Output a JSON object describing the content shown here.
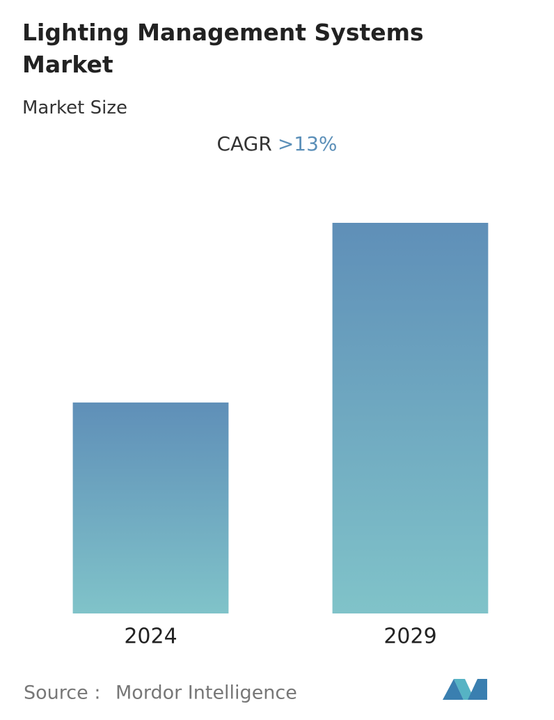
{
  "chart_data": {
    "type": "bar",
    "title": "Lighting Management Systems Market",
    "subtitle": "Market Size",
    "cagr_label": "CAGR",
    "cagr_value": ">13%",
    "categories": [
      "2024",
      "2029"
    ],
    "values": [
      54,
      100
    ],
    "ylim": [
      0,
      100
    ],
    "color_top": "#5f8fb8",
    "color_bottom": "#80c3c9",
    "source_label": "Source :",
    "source": "Mordor Intelligence"
  }
}
